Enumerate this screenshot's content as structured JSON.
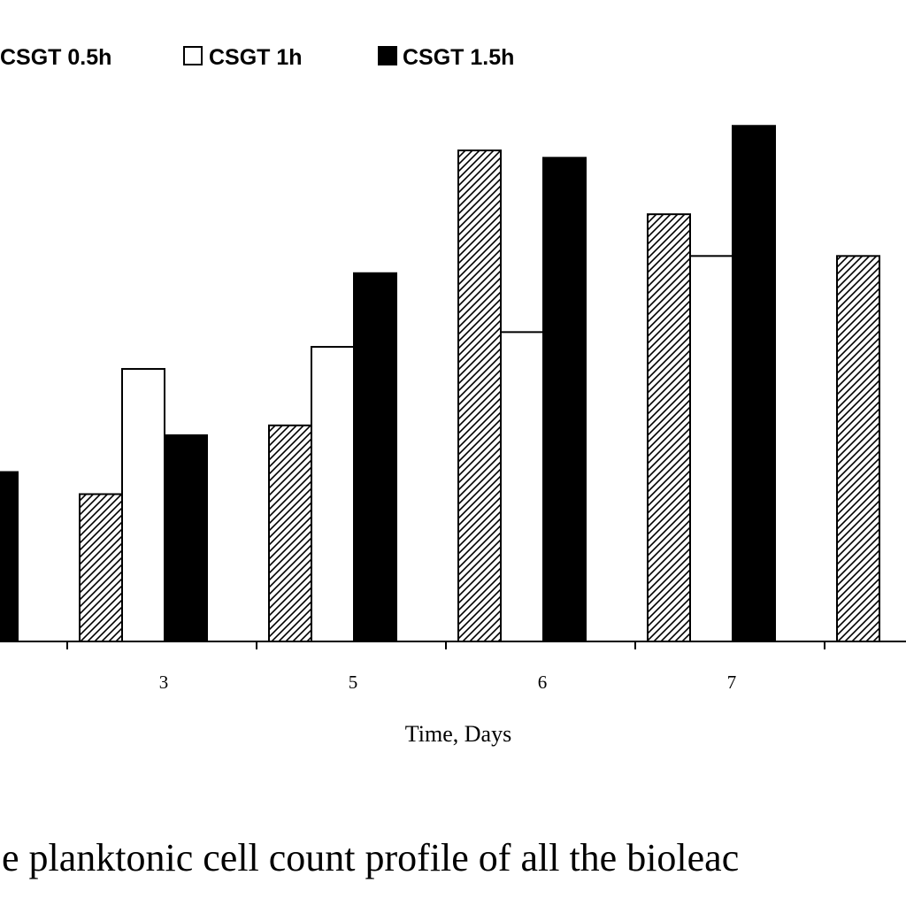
{
  "chart_data": {
    "type": "bar",
    "xlabel": "Time, Days",
    "ylabel": "",
    "ylim": [
      0,
      100
    ],
    "categories": [
      "",
      "3",
      "5",
      "6",
      "7",
      ""
    ],
    "series": [
      {
        "name": "CSGT 0.5h",
        "pattern": "hatch",
        "values": [
          null,
          30,
          44,
          100,
          87,
          78.5
        ]
      },
      {
        "name": "CSGT 1h",
        "pattern": "white",
        "values": [
          null,
          55.5,
          60,
          63,
          78.5,
          null
        ]
      },
      {
        "name": "CSGT 1.5h",
        "pattern": "black",
        "values": [
          34.5,
          42,
          75,
          98.5,
          105,
          null
        ]
      }
    ],
    "legend_position": "top",
    "grid": false
  },
  "caption": "e planktonic cell  count profile of all the bioleac",
  "colors": {
    "bar_fill": "#000000",
    "bar_stroke": "#000000",
    "hatch_bg": "#ffffff"
  }
}
